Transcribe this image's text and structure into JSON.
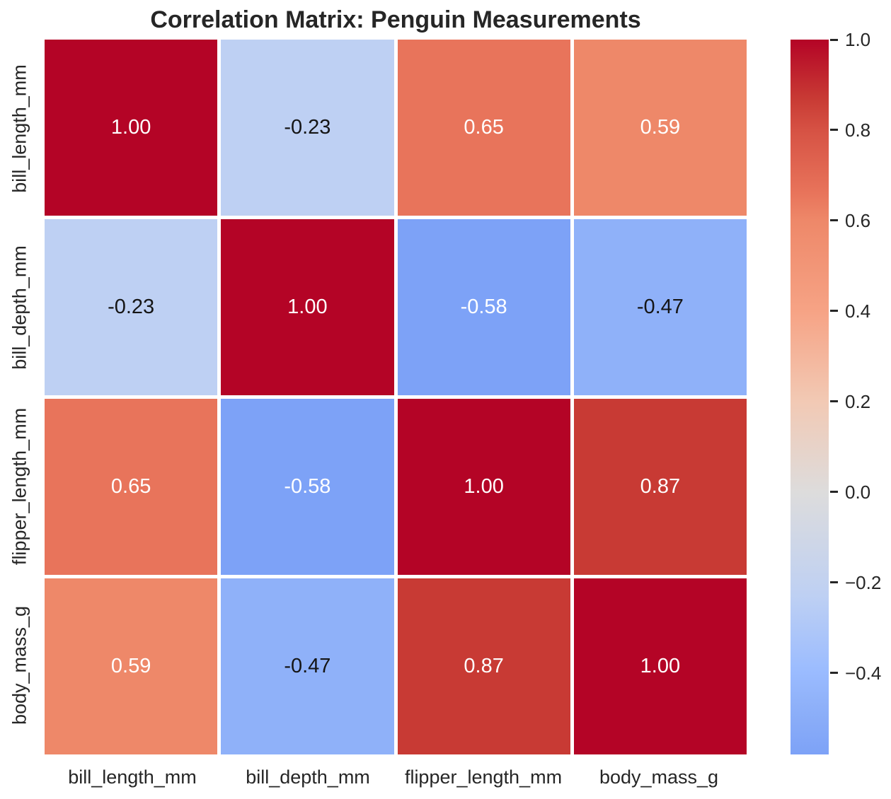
{
  "figure": {
    "background": "#ffffff"
  },
  "chart_data": {
    "type": "heatmap",
    "title": "Correlation Matrix: Penguin Measurements",
    "colormap": "coolwarm",
    "grid": false,
    "categories": [
      "bill_length_mm",
      "bill_depth_mm",
      "flipper_length_mm",
      "body_mass_g"
    ],
    "matrix": [
      [
        1.0,
        -0.23,
        0.65,
        0.59
      ],
      [
        -0.23,
        1.0,
        -0.58,
        -0.47
      ],
      [
        0.65,
        -0.58,
        1.0,
        0.87
      ],
      [
        0.59,
        -0.47,
        0.87,
        1.0
      ]
    ],
    "cells": [
      {
        "row": "bill_length_mm",
        "col": "bill_length_mm",
        "value": 1.0,
        "label": "1.00",
        "bg": "#b40426",
        "fg": "#ffffff"
      },
      {
        "row": "bill_length_mm",
        "col": "bill_depth_mm",
        "value": -0.23,
        "label": "-0.23",
        "bg": "#bed0f3",
        "fg": "#151515"
      },
      {
        "row": "bill_length_mm",
        "col": "flipper_length_mm",
        "value": 0.65,
        "label": "0.65",
        "bg": "#e8745b",
        "fg": "#ffffff"
      },
      {
        "row": "bill_length_mm",
        "col": "body_mass_g",
        "value": 0.59,
        "label": "0.59",
        "bg": "#ee8869",
        "fg": "#ffffff"
      },
      {
        "row": "bill_depth_mm",
        "col": "bill_length_mm",
        "value": -0.23,
        "label": "-0.23",
        "bg": "#bed0f3",
        "fg": "#151515"
      },
      {
        "row": "bill_depth_mm",
        "col": "bill_depth_mm",
        "value": 1.0,
        "label": "1.00",
        "bg": "#b40426",
        "fg": "#ffffff"
      },
      {
        "row": "bill_depth_mm",
        "col": "flipper_length_mm",
        "value": -0.58,
        "label": "-0.58",
        "bg": "#7da2f7",
        "fg": "#ffffff"
      },
      {
        "row": "bill_depth_mm",
        "col": "body_mass_g",
        "value": -0.47,
        "label": "-0.47",
        "bg": "#8fb1f9",
        "fg": "#151515"
      },
      {
        "row": "flipper_length_mm",
        "col": "bill_length_mm",
        "value": 0.65,
        "label": "0.65",
        "bg": "#e8745b",
        "fg": "#ffffff"
      },
      {
        "row": "flipper_length_mm",
        "col": "bill_depth_mm",
        "value": -0.58,
        "label": "-0.58",
        "bg": "#7da2f7",
        "fg": "#ffffff"
      },
      {
        "row": "flipper_length_mm",
        "col": "flipper_length_mm",
        "value": 1.0,
        "label": "1.00",
        "bg": "#b40426",
        "fg": "#ffffff"
      },
      {
        "row": "flipper_length_mm",
        "col": "body_mass_g",
        "value": 0.87,
        "label": "0.87",
        "bg": "#c83a34",
        "fg": "#ffffff"
      },
      {
        "row": "body_mass_g",
        "col": "bill_length_mm",
        "value": 0.59,
        "label": "0.59",
        "bg": "#ee8869",
        "fg": "#ffffff"
      },
      {
        "row": "body_mass_g",
        "col": "bill_depth_mm",
        "value": -0.47,
        "label": "-0.47",
        "bg": "#8fb1f9",
        "fg": "#151515"
      },
      {
        "row": "body_mass_g",
        "col": "flipper_length_mm",
        "value": 0.87,
        "label": "0.87",
        "bg": "#c83a34",
        "fg": "#ffffff"
      },
      {
        "row": "body_mass_g",
        "col": "body_mass_g",
        "value": 1.0,
        "label": "1.00",
        "bg": "#b40426",
        "fg": "#ffffff"
      }
    ],
    "cell_gap_color": "#ffffff",
    "text_colors": {
      "on_dark": "#ffffff",
      "on_light": "#151515"
    },
    "colorbar": {
      "position": "right",
      "vmin": -0.58,
      "vmax": 1.0,
      "ticks": [
        {
          "value": 1.0,
          "label": "1.0"
        },
        {
          "value": 0.8,
          "label": "0.8"
        },
        {
          "value": 0.6,
          "label": "0.6"
        },
        {
          "value": 0.4,
          "label": "0.4"
        },
        {
          "value": 0.2,
          "label": "0.2"
        },
        {
          "value": 0.0,
          "label": "0.0"
        },
        {
          "value": -0.2,
          "label": "−0.2"
        },
        {
          "value": -0.4,
          "label": "−0.4"
        }
      ],
      "gradient": [
        {
          "pos": 0.0,
          "color": "#7da2f7"
        },
        {
          "pos": 0.07,
          "color": "#8fb1f9"
        },
        {
          "pos": 0.114,
          "color": "#9abbff"
        },
        {
          "pos": 0.222,
          "color": "#bed0f3"
        },
        {
          "pos": 0.367,
          "color": "#dddcdc"
        },
        {
          "pos": 0.494,
          "color": "#f2c9b4"
        },
        {
          "pos": 0.62,
          "color": "#f6a385"
        },
        {
          "pos": 0.747,
          "color": "#ee8869"
        },
        {
          "pos": 0.785,
          "color": "#e8745b"
        },
        {
          "pos": 0.873,
          "color": "#d65244"
        },
        {
          "pos": 0.918,
          "color": "#c83a34"
        },
        {
          "pos": 1.0,
          "color": "#b40426"
        }
      ]
    },
    "accent_colors": {
      "max_red": "#b40426",
      "mid_neutral": "#dddcdc",
      "min_blue": "#7da2f7"
    }
  }
}
